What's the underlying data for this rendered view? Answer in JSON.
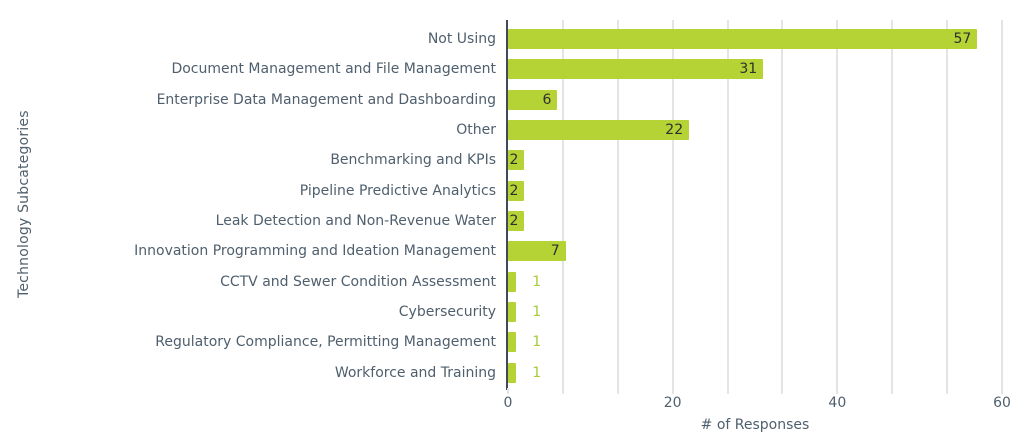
{
  "chart_data": {
    "type": "bar",
    "orientation": "horizontal",
    "title": "",
    "xlabel": "# of Responses",
    "ylabel": "Technology Subcategories",
    "xlim": [
      0,
      60
    ],
    "x_tick_labels": [
      "0",
      "20",
      "40",
      "60"
    ],
    "gridline_divisions": 9,
    "grid": true,
    "legend": "none",
    "categories": [
      "Not Using",
      "Document Management and File Management",
      "Enterprise Data Management and Dashboarding",
      "Other",
      "Benchmarking and KPIs",
      "Pipeline Predictive Analytics",
      "Leak Detection and Non-Revenue Water",
      "Innovation Programming and Ideation Management",
      "CCTV and Sewer Condition Assessment",
      "Cybersecurity",
      "Regulatory Compliance, Permitting Management",
      "Workforce and Training"
    ],
    "values": [
      57,
      31,
      6,
      22,
      2,
      2,
      2,
      7,
      1,
      1,
      1,
      1
    ],
    "colors": {
      "bar": "#b5d334",
      "value_label_inside": "#2f2f2f",
      "value_label_outside": "#a8ca3c",
      "axis_text": "#4f5f6d",
      "axis_line": "#404b55",
      "gridline": "#e4e4e4",
      "background": "#ffffff"
    }
  }
}
